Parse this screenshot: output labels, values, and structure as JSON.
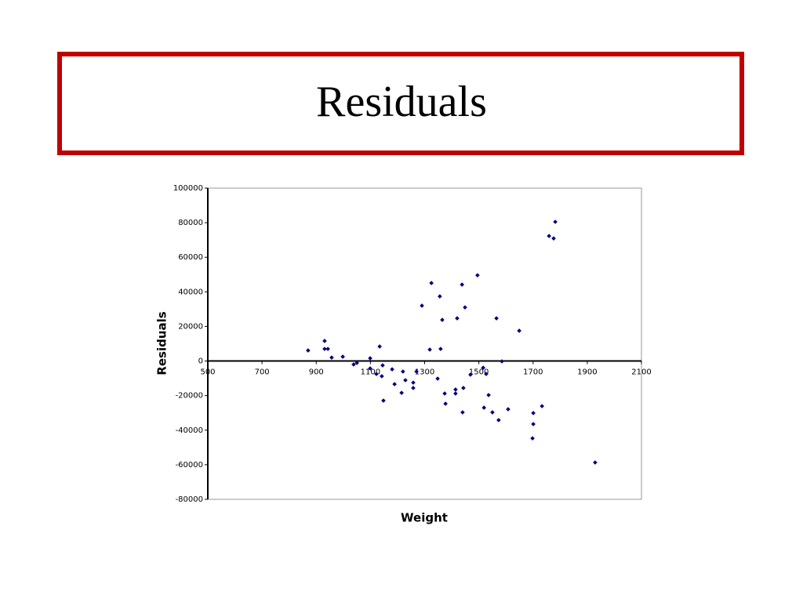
{
  "chart_data": {
    "type": "scatter",
    "title": "Residuals",
    "xlabel": "Weight",
    "ylabel": "Residuals",
    "xlim": [
      500,
      2100
    ],
    "xticks": [
      500,
      700,
      900,
      1100,
      1300,
      1500,
      1700,
      1900,
      2100
    ],
    "ylim": [
      -80000,
      100000
    ],
    "yticks": [
      -80000,
      -60000,
      -40000,
      -20000,
      0,
      20000,
      40000,
      60000,
      80000,
      100000
    ],
    "color": "#000080",
    "x": [
      870,
      931,
      931,
      943,
      957,
      998,
      1038,
      1050,
      1099,
      1099,
      1122,
      1134,
      1142,
      1145,
      1148,
      1180,
      1189,
      1215,
      1220,
      1229,
      1258,
      1258,
      1270,
      1290,
      1319,
      1325,
      1348,
      1356,
      1359,
      1365,
      1374,
      1377,
      1414,
      1414,
      1420,
      1438,
      1440,
      1443,
      1449,
      1469,
      1495,
      1516,
      1519,
      1527,
      1536,
      1550,
      1565,
      1573,
      1585,
      1608,
      1649,
      1698,
      1701,
      1701,
      1733,
      1759,
      1776,
      1782,
      1929
    ],
    "values": [
      6100,
      11600,
      7000,
      7000,
      2000,
      2500,
      -2000,
      -1100,
      1600,
      -4300,
      -7500,
      8400,
      -8800,
      -2500,
      -22900,
      -4800,
      -13400,
      -18400,
      -6100,
      -11100,
      -12500,
      -15600,
      -6100,
      32000,
      6600,
      45100,
      -10200,
      37400,
      7000,
      23800,
      -18800,
      -24700,
      -16500,
      -18800,
      24700,
      44200,
      -29700,
      -15600,
      31000,
      -7900,
      49600,
      -3900,
      -27000,
      -7500,
      -19700,
      -29700,
      24700,
      -34200,
      -200,
      -27900,
      17500,
      -44700,
      -30100,
      -36500,
      -26100,
      72300,
      70900,
      80500,
      -58700
    ]
  }
}
